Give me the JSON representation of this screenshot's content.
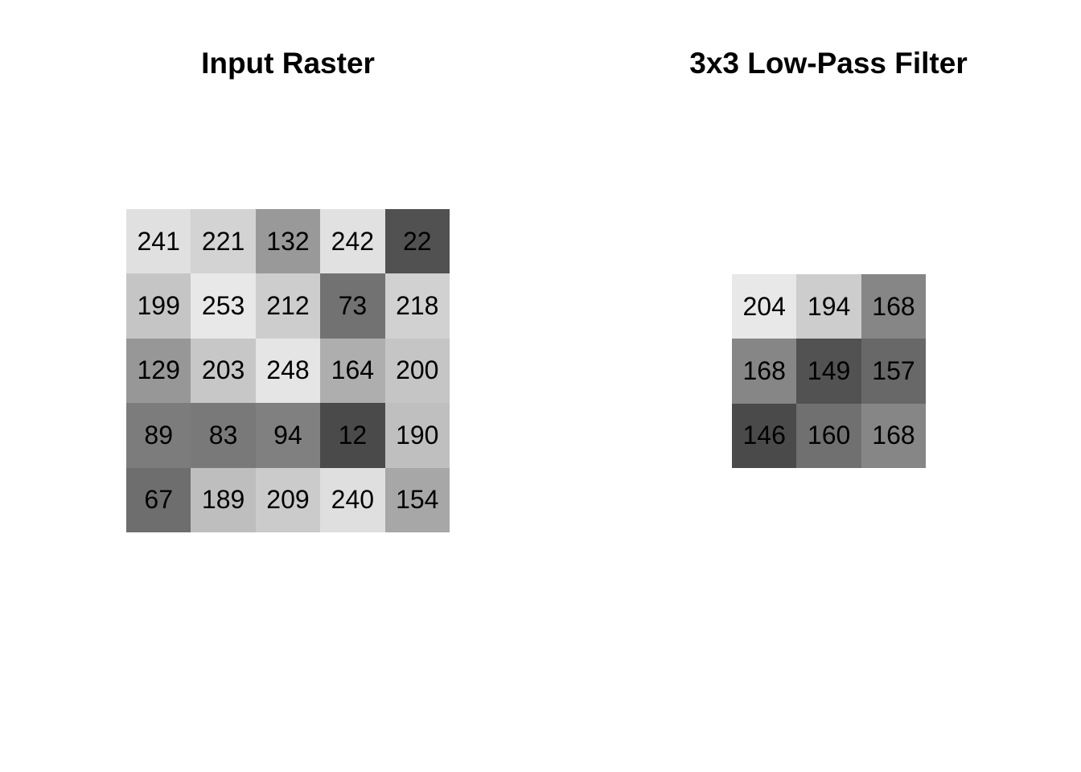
{
  "input_raster": {
    "title": "Input Raster",
    "rows": [
      [
        241,
        221,
        132,
        242,
        22
      ],
      [
        199,
        253,
        212,
        73,
        218
      ],
      [
        129,
        203,
        248,
        164,
        200
      ],
      [
        89,
        83,
        94,
        12,
        190
      ],
      [
        67,
        189,
        209,
        240,
        154
      ]
    ]
  },
  "low_pass_filter": {
    "title": "3x3 Low-Pass Filter",
    "rows": [
      [
        204,
        194,
        168
      ],
      [
        168,
        149,
        157
      ],
      [
        146,
        160,
        168
      ]
    ]
  }
}
